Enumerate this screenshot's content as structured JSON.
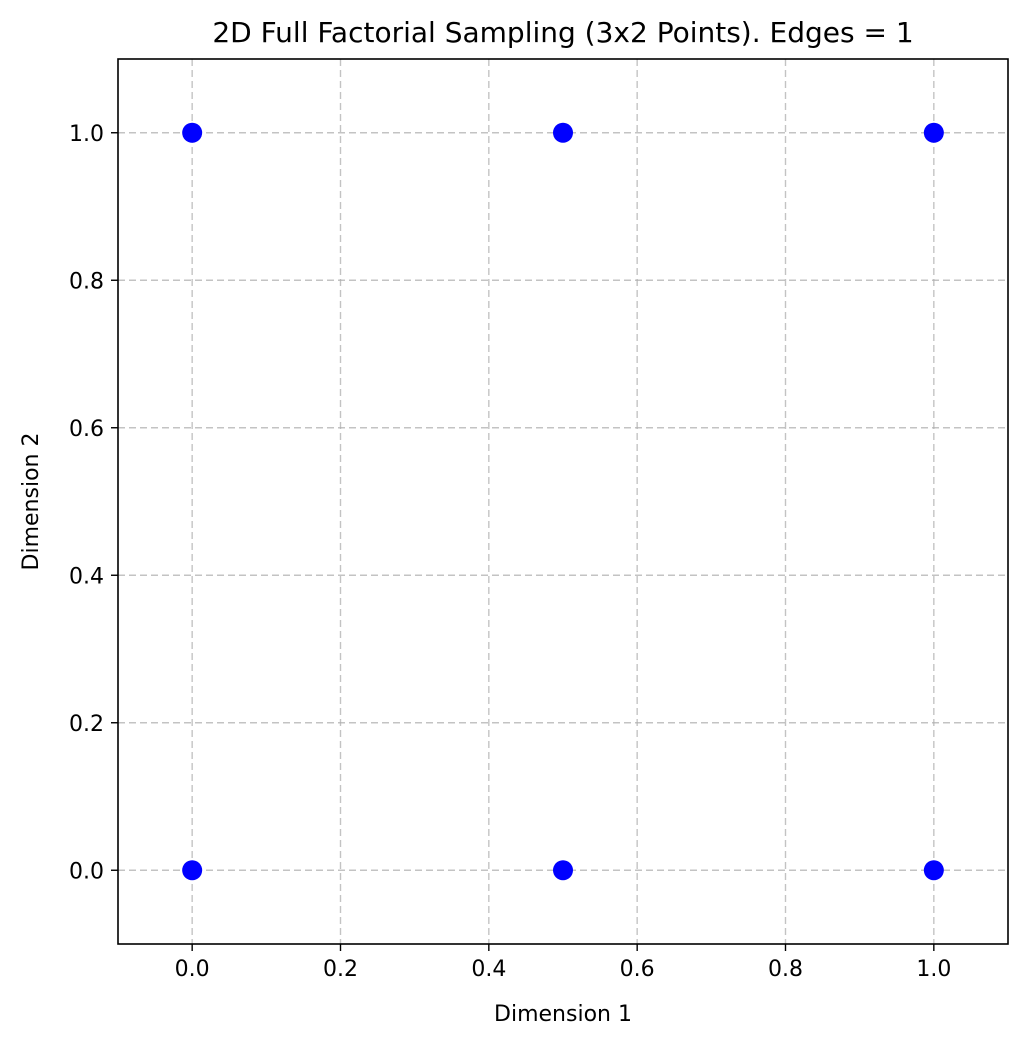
{
  "colors": {
    "point": "#0000ff",
    "grid": "#b0b0b0",
    "axes": "#000000",
    "background": "#ffffff"
  },
  "chart_data": {
    "type": "scatter",
    "title": "2D Full Factorial Sampling (3x2 Points). Edges = 1",
    "xlabel": "Dimension 1",
    "ylabel": "Dimension 2",
    "xlim": [
      -0.1,
      1.1
    ],
    "ylim": [
      -0.1,
      1.1
    ],
    "xticks": [
      0.0,
      0.2,
      0.4,
      0.6,
      0.8,
      1.0
    ],
    "yticks": [
      0.0,
      0.2,
      0.4,
      0.6,
      0.8,
      1.0
    ],
    "xtick_labels": [
      "0.0",
      "0.2",
      "0.4",
      "0.6",
      "0.8",
      "1.0"
    ],
    "ytick_labels": [
      "0.0",
      "0.2",
      "0.4",
      "0.6",
      "0.8",
      "1.0"
    ],
    "grid": true,
    "series": [
      {
        "color": "#0000ff",
        "points": [
          {
            "x": 0.0,
            "y": 0.0
          },
          {
            "x": 0.0,
            "y": 1.0
          },
          {
            "x": 0.5,
            "y": 0.0
          },
          {
            "x": 0.5,
            "y": 1.0
          },
          {
            "x": 1.0,
            "y": 0.0
          },
          {
            "x": 1.0,
            "y": 1.0
          }
        ]
      }
    ]
  }
}
